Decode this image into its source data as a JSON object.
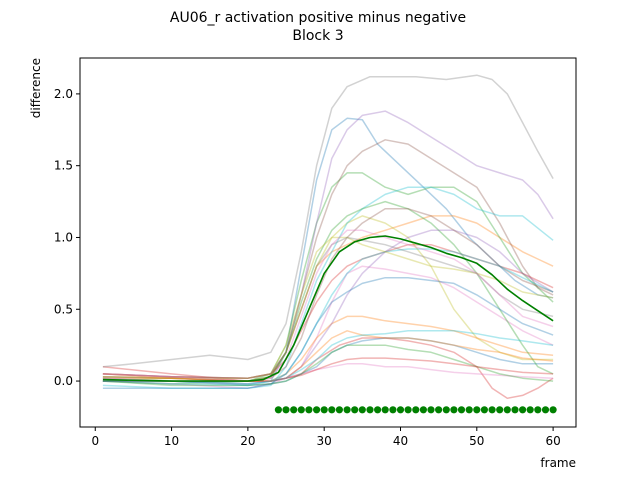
{
  "chart_data": {
    "type": "line",
    "title": "AU06_r activation positive minus negative",
    "subtitle": "Block 3",
    "xlabel": "frame",
    "ylabel": "difference",
    "xlim": [
      -2,
      63
    ],
    "ylim": [
      -0.32,
      2.25
    ],
    "xticks": [
      0,
      10,
      20,
      30,
      40,
      50,
      60
    ],
    "yticks": [
      0.0,
      0.5,
      1.0,
      1.5,
      2.0
    ],
    "grid": false,
    "legend": "none",
    "colors": {
      "mean": "#008000",
      "markers": "#008000",
      "axes": "#000000"
    },
    "mean_series": {
      "x": [
        1,
        10,
        20,
        22,
        24,
        26,
        28,
        30,
        32,
        34,
        36,
        38,
        40,
        42,
        44,
        46,
        48,
        50,
        52,
        54,
        56,
        58,
        60
      ],
      "y": [
        0.01,
        0.0,
        0.0,
        0.01,
        0.06,
        0.25,
        0.5,
        0.75,
        0.9,
        0.97,
        1.0,
        1.01,
        0.99,
        0.96,
        0.93,
        0.89,
        0.86,
        0.82,
        0.74,
        0.64,
        0.56,
        0.49,
        0.42
      ]
    },
    "significance_markers": {
      "x": [
        24,
        25,
        26,
        27,
        28,
        29,
        30,
        31,
        32,
        33,
        34,
        35,
        36,
        37,
        38,
        39,
        40,
        41,
        42,
        43,
        44,
        45,
        46,
        47,
        48,
        49,
        50,
        51,
        52,
        53,
        54,
        55,
        56,
        57,
        58,
        59,
        60
      ],
      "y": -0.2
    },
    "series": [
      {
        "color": "#1f77b4",
        "x": [
          1,
          10,
          20,
          23,
          25,
          27,
          29,
          31,
          33,
          35,
          37,
          40,
          43,
          46,
          49,
          52,
          55,
          58,
          60
        ],
        "y": [
          0.02,
          0.0,
          -0.02,
          0.0,
          0.2,
          0.8,
          1.4,
          1.75,
          1.83,
          1.82,
          1.65,
          1.5,
          1.35,
          1.2,
          1.0,
          0.85,
          0.7,
          0.6,
          0.58
        ]
      },
      {
        "color": "#ff7f0e",
        "x": [
          1,
          10,
          20,
          23,
          25,
          27,
          29,
          31,
          33,
          35,
          38,
          41,
          44,
          47,
          50,
          53,
          56,
          58,
          60
        ],
        "y": [
          0.05,
          0.03,
          0.02,
          0.05,
          0.2,
          0.5,
          0.8,
          0.9,
          0.95,
          1.0,
          1.05,
          1.1,
          1.15,
          1.15,
          1.1,
          1.0,
          0.9,
          0.85,
          0.8
        ]
      },
      {
        "color": "#2ca02c",
        "x": [
          1,
          10,
          20,
          23,
          25,
          27,
          29,
          31,
          33,
          35,
          38,
          41,
          44,
          47,
          50,
          53,
          56,
          60
        ],
        "y": [
          0.0,
          -0.02,
          0.0,
          0.05,
          0.25,
          0.7,
          1.1,
          1.35,
          1.45,
          1.45,
          1.35,
          1.3,
          1.35,
          1.35,
          1.25,
          1.0,
          0.75,
          0.55
        ]
      },
      {
        "color": "#d62728",
        "x": [
          1,
          10,
          20,
          23,
          25,
          27,
          29,
          32,
          35,
          38,
          41,
          44,
          47,
          50,
          52,
          54,
          56,
          58,
          60
        ],
        "y": [
          0.1,
          0.05,
          0.0,
          0.0,
          0.02,
          0.05,
          0.15,
          0.25,
          0.3,
          0.3,
          0.28,
          0.25,
          0.2,
          0.1,
          -0.05,
          -0.12,
          -0.1,
          -0.05,
          0.02
        ]
      },
      {
        "color": "#9467bd",
        "x": [
          1,
          10,
          20,
          23,
          25,
          27,
          29,
          31,
          33,
          35,
          38,
          41,
          44,
          47,
          50,
          53,
          56,
          58,
          60
        ],
        "y": [
          0.05,
          0.03,
          0.02,
          0.05,
          0.2,
          0.6,
          1.1,
          1.55,
          1.75,
          1.85,
          1.88,
          1.8,
          1.7,
          1.6,
          1.5,
          1.45,
          1.4,
          1.3,
          1.13
        ]
      },
      {
        "color": "#8c564b",
        "x": [
          1,
          10,
          20,
          23,
          25,
          27,
          29,
          31,
          33,
          35,
          38,
          41,
          44,
          47,
          50,
          53,
          56,
          58,
          60
        ],
        "y": [
          0.03,
          0.02,
          0.0,
          0.03,
          0.2,
          0.6,
          1.0,
          1.3,
          1.5,
          1.6,
          1.68,
          1.65,
          1.55,
          1.45,
          1.35,
          1.1,
          0.8,
          0.65,
          0.6
        ]
      },
      {
        "color": "#e377c2",
        "x": [
          1,
          10,
          20,
          23,
          25,
          27,
          29,
          31,
          33,
          35,
          38,
          41,
          44,
          47,
          50,
          53,
          56,
          58,
          60
        ],
        "y": [
          0.0,
          -0.02,
          -0.05,
          -0.02,
          0.02,
          0.1,
          0.3,
          0.55,
          0.75,
          0.8,
          0.78,
          0.75,
          0.72,
          0.65,
          0.55,
          0.45,
          0.35,
          0.3,
          0.25
        ]
      },
      {
        "color": "#7f7f7f",
        "x": [
          1,
          5,
          10,
          15,
          20,
          23,
          25,
          27,
          29,
          31,
          33,
          36,
          39,
          42,
          46,
          50,
          52,
          54,
          56,
          58,
          60
        ],
        "y": [
          0.1,
          0.12,
          0.15,
          0.18,
          0.15,
          0.2,
          0.4,
          0.9,
          1.5,
          1.9,
          2.05,
          2.12,
          2.12,
          2.12,
          2.1,
          2.13,
          2.1,
          2.0,
          1.8,
          1.6,
          1.41
        ]
      },
      {
        "color": "#bcbd22",
        "x": [
          1,
          10,
          20,
          23,
          25,
          27,
          29,
          31,
          33,
          35,
          38,
          41,
          44,
          47,
          50,
          53,
          56,
          60
        ],
        "y": [
          0.0,
          0.02,
          0.0,
          0.03,
          0.2,
          0.5,
          0.8,
          1.0,
          1.1,
          1.15,
          1.1,
          1.0,
          0.8,
          0.5,
          0.3,
          0.2,
          0.15,
          0.15
        ]
      },
      {
        "color": "#17becf",
        "x": [
          1,
          10,
          20,
          23,
          25,
          27,
          29,
          31,
          33,
          35,
          38,
          41,
          44,
          47,
          50,
          53,
          56,
          60
        ],
        "y": [
          -0.03,
          -0.05,
          -0.05,
          -0.03,
          0.1,
          0.4,
          0.7,
          0.9,
          1.1,
          1.2,
          1.3,
          1.35,
          1.35,
          1.3,
          1.2,
          1.15,
          1.15,
          0.98
        ]
      },
      {
        "color": "#1f77b4",
        "x": [
          1,
          10,
          20,
          23,
          25,
          27,
          29,
          31,
          33,
          35,
          38,
          41,
          44,
          47,
          50,
          53,
          56,
          60
        ],
        "y": [
          0.0,
          0.0,
          -0.03,
          -0.02,
          0.0,
          0.05,
          0.1,
          0.2,
          0.25,
          0.28,
          0.3,
          0.3,
          0.28,
          0.25,
          0.2,
          0.15,
          0.12,
          0.12
        ]
      },
      {
        "color": "#ff7f0e",
        "x": [
          1,
          10,
          20,
          23,
          25,
          27,
          29,
          31,
          33,
          35,
          38,
          41,
          44,
          47,
          50,
          53,
          56,
          60
        ],
        "y": [
          0.02,
          0.02,
          0.0,
          0.0,
          0.05,
          0.15,
          0.3,
          0.4,
          0.45,
          0.45,
          0.42,
          0.4,
          0.38,
          0.35,
          0.3,
          0.25,
          0.2,
          0.18
        ]
      },
      {
        "color": "#2ca02c",
        "x": [
          1,
          10,
          20,
          23,
          25,
          27,
          29,
          31,
          33,
          35,
          38,
          41,
          44,
          47,
          50,
          53,
          56,
          58,
          60
        ],
        "y": [
          0.0,
          0.0,
          0.0,
          0.03,
          0.2,
          0.55,
          0.85,
          1.05,
          1.15,
          1.2,
          1.25,
          1.2,
          1.1,
          0.95,
          0.75,
          0.5,
          0.25,
          0.1,
          0.05
        ]
      },
      {
        "color": "#d62728",
        "x": [
          1,
          10,
          20,
          23,
          25,
          27,
          29,
          31,
          33,
          35,
          38,
          41,
          44,
          47,
          50,
          53,
          56,
          60
        ],
        "y": [
          0.05,
          0.03,
          0.02,
          0.05,
          0.15,
          0.35,
          0.55,
          0.7,
          0.8,
          0.85,
          0.9,
          0.95,
          0.95,
          0.9,
          0.85,
          0.8,
          0.75,
          0.65
        ]
      },
      {
        "color": "#9467bd",
        "x": [
          1,
          10,
          20,
          23,
          25,
          27,
          29,
          31,
          33,
          35,
          38,
          41,
          44,
          47,
          50,
          53,
          56,
          60
        ],
        "y": [
          0.0,
          0.0,
          0.0,
          0.0,
          0.02,
          0.1,
          0.25,
          0.4,
          0.6,
          0.75,
          0.9,
          1.0,
          1.05,
          1.05,
          1.0,
          0.9,
          0.75,
          0.62
        ]
      },
      {
        "color": "#8c564b",
        "x": [
          1,
          10,
          20,
          23,
          25,
          27,
          29,
          31,
          33,
          35,
          38,
          41,
          44,
          47,
          50,
          53,
          56,
          60
        ],
        "y": [
          0.03,
          0.02,
          0.0,
          0.02,
          0.1,
          0.3,
          0.6,
          0.85,
          1.0,
          1.1,
          1.2,
          1.2,
          1.15,
          1.05,
          0.95,
          0.8,
          0.7,
          0.62
        ]
      },
      {
        "color": "#e377c2",
        "x": [
          1,
          10,
          20,
          23,
          25,
          27,
          29,
          31,
          33,
          35,
          38,
          41,
          44,
          47,
          50,
          53,
          56,
          60
        ],
        "y": [
          0.02,
          0.0,
          -0.02,
          0.0,
          0.02,
          0.05,
          0.08,
          0.1,
          0.12,
          0.12,
          0.1,
          0.1,
          0.08,
          0.06,
          0.05,
          0.04,
          0.03,
          0.02
        ]
      },
      {
        "color": "#17becf",
        "x": [
          1,
          10,
          20,
          23,
          25,
          27,
          29,
          31,
          33,
          35,
          38,
          41,
          44,
          47,
          50,
          53,
          56,
          60
        ],
        "y": [
          0.0,
          -0.02,
          -0.03,
          0.0,
          0.05,
          0.2,
          0.4,
          0.6,
          0.75,
          0.85,
          0.9,
          0.92,
          0.92,
          0.9,
          0.85,
          0.8,
          0.72,
          0.62
        ]
      },
      {
        "color": "#bcbd22",
        "x": [
          1,
          10,
          20,
          23,
          25,
          27,
          29,
          31,
          33,
          35,
          38,
          41,
          44,
          47,
          50,
          53,
          56,
          60
        ],
        "y": [
          0.03,
          0.02,
          0.02,
          0.05,
          0.25,
          0.6,
          0.9,
          1.0,
          1.0,
          0.95,
          0.9,
          0.85,
          0.8,
          0.78,
          0.75,
          0.7,
          0.62,
          0.58
        ]
      },
      {
        "color": "#ff7f0e",
        "x": [
          1,
          10,
          20,
          23,
          25,
          27,
          29,
          31,
          33,
          35,
          38,
          41,
          44,
          47,
          50,
          53,
          56,
          60
        ],
        "y": [
          0.05,
          0.02,
          0.0,
          0.0,
          0.02,
          0.1,
          0.2,
          0.3,
          0.35,
          0.32,
          0.3,
          0.3,
          0.28,
          0.25,
          0.22,
          0.2,
          0.16,
          0.14
        ]
      },
      {
        "color": "#7f7f7f",
        "x": [
          1,
          10,
          20,
          23,
          25,
          27,
          29,
          31,
          33,
          35,
          38,
          41,
          44,
          47,
          50,
          53,
          56,
          60
        ],
        "y": [
          0.05,
          0.03,
          0.02,
          0.05,
          0.2,
          0.5,
          0.8,
          0.95,
          1.0,
          0.98,
          0.95,
          0.9,
          0.85,
          0.8,
          0.75,
          0.6,
          0.5,
          0.45
        ]
      },
      {
        "color": "#1f77b4",
        "x": [
          1,
          10,
          20,
          23,
          25,
          27,
          29,
          31,
          33,
          35,
          38,
          41,
          44,
          47,
          50,
          53,
          56,
          60
        ],
        "y": [
          -0.05,
          -0.05,
          -0.05,
          -0.02,
          0.05,
          0.2,
          0.4,
          0.55,
          0.62,
          0.68,
          0.72,
          0.72,
          0.7,
          0.68,
          0.6,
          0.5,
          0.4,
          0.32
        ]
      },
      {
        "color": "#2ca02c",
        "x": [
          1,
          10,
          20,
          23,
          25,
          27,
          29,
          31,
          33,
          35,
          38,
          41,
          44,
          47,
          50,
          53,
          56,
          60
        ],
        "y": [
          0.0,
          -0.03,
          -0.03,
          -0.02,
          0.0,
          0.05,
          0.12,
          0.2,
          0.25,
          0.25,
          0.25,
          0.22,
          0.2,
          0.15,
          0.1,
          0.05,
          0.02,
          0.0
        ]
      },
      {
        "color": "#d62728",
        "x": [
          1,
          10,
          20,
          23,
          25,
          27,
          29,
          31,
          33,
          35,
          38,
          41,
          44,
          47,
          50,
          53,
          56,
          60
        ],
        "y": [
          0.0,
          0.0,
          0.0,
          0.0,
          0.02,
          0.04,
          0.08,
          0.12,
          0.15,
          0.16,
          0.16,
          0.15,
          0.14,
          0.12,
          0.1,
          0.08,
          0.06,
          0.05
        ]
      },
      {
        "color": "#17becf",
        "x": [
          1,
          10,
          20,
          23,
          25,
          27,
          29,
          31,
          33,
          35,
          38,
          41,
          44,
          47,
          50,
          53,
          56,
          60
        ],
        "y": [
          0.0,
          0.0,
          -0.02,
          0.0,
          0.02,
          0.08,
          0.15,
          0.25,
          0.3,
          0.32,
          0.33,
          0.35,
          0.35,
          0.35,
          0.33,
          0.3,
          0.28,
          0.25
        ]
      },
      {
        "color": "#e377c2",
        "x": [
          1,
          10,
          20,
          23,
          25,
          27,
          29,
          31,
          33,
          35,
          38,
          41,
          44,
          47,
          50,
          53,
          56,
          60
        ],
        "y": [
          0.05,
          0.03,
          0.0,
          0.02,
          0.15,
          0.45,
          0.75,
          0.95,
          1.05,
          1.05,
          1.0,
          0.95,
          0.9,
          0.85,
          0.75,
          0.6,
          0.45,
          0.38
        ]
      }
    ]
  }
}
